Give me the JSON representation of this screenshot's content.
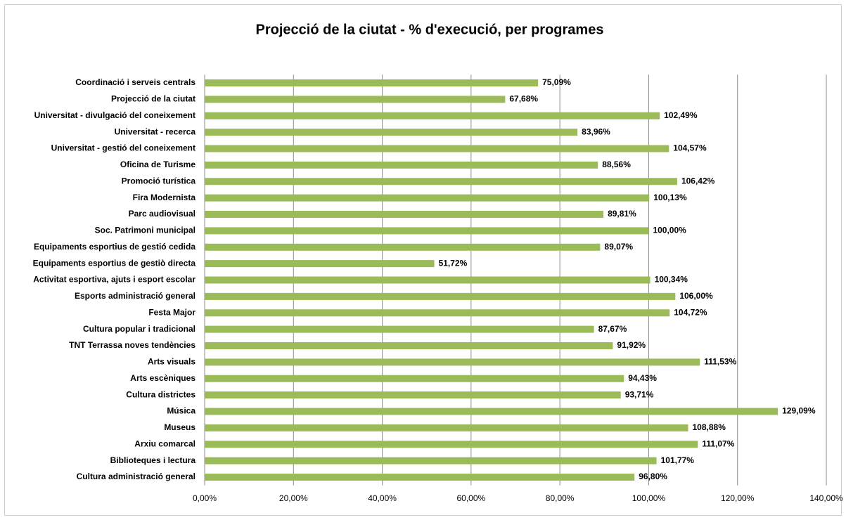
{
  "chart_data": {
    "type": "bar",
    "title": "Projecció de la ciutat -  % d'execució, per programes",
    "categories": [
      "Coordinació i serveis centrals",
      "Projecció de la ciutat",
      "Universitat - divulgació del coneixement",
      "Universitat - recerca",
      "Universitat - gestió del coneixement",
      "Oficina de Turisme",
      "Promoció turística",
      "Fira Modernista",
      "Parc audiovisual",
      "Soc. Patrimoni municipal ",
      "Equipaments esportius de gestió cedida",
      "Equipaments esportius de gestiò directa",
      "Activitat esportiva, ajuts i esport escolar",
      "Esports administració general",
      "Festa Major",
      "Cultura popular i tradicional",
      "TNT Terrassa noves tendències",
      "Arts visuals",
      "Arts escèniques",
      "Cultura districtes",
      "Música",
      "Museus",
      "Arxiu comarcal",
      "Biblioteques i lectura",
      "Cultura administració general"
    ],
    "values": [
      75.09,
      67.68,
      102.49,
      83.96,
      104.57,
      88.56,
      106.42,
      100.13,
      89.81,
      100.0,
      89.07,
      51.72,
      100.34,
      106.0,
      104.72,
      87.67,
      91.92,
      111.53,
      94.43,
      93.71,
      129.09,
      108.88,
      111.07,
      101.77,
      96.8
    ],
    "value_labels": [
      "75,09%",
      "67,68%",
      "102,49%",
      "83,96%",
      "104,57%",
      "88,56%",
      "106,42%",
      "100,13%",
      "89,81%",
      "100,00%",
      "89,07%",
      "51,72%",
      "100,34%",
      "106,00%",
      "104,72%",
      "87,67%",
      "91,92%",
      "111,53%",
      "94,43%",
      "93,71%",
      "129,09%",
      "108,88%",
      "111,07%",
      "101,77%",
      "96,80%"
    ],
    "color": "#9bbb59",
    "xlim": [
      0,
      140
    ],
    "xticks": [
      {
        "value": 0,
        "label": "0,00%"
      },
      {
        "value": 20,
        "label": "20,00%"
      },
      {
        "value": 40,
        "label": "40,00%"
      },
      {
        "value": 60,
        "label": "60,00%"
      },
      {
        "value": 80,
        "label": "80,00%"
      },
      {
        "value": 100,
        "label": "100,00%"
      },
      {
        "value": 120,
        "label": "120,00%"
      },
      {
        "value": 140,
        "label": "140,00%"
      }
    ],
    "grid": true
  }
}
